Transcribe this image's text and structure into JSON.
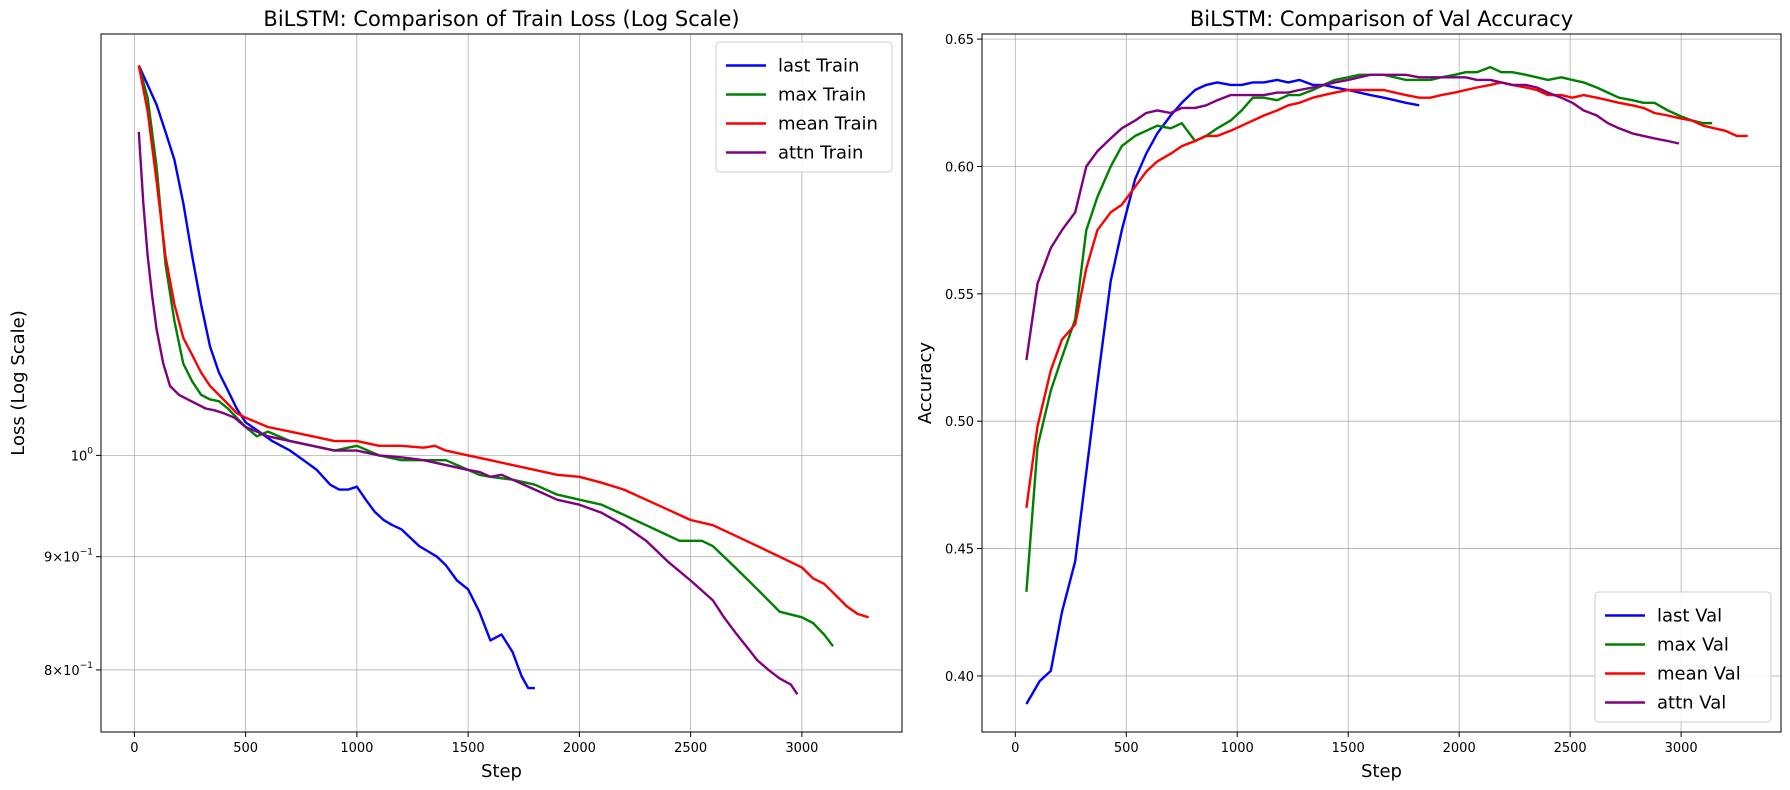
{
  "chart_data": [
    {
      "type": "line",
      "title": "BiLSTM: Comparison of Train Loss (Log Scale)",
      "xlabel": "Step",
      "ylabel": "Loss (Log Scale)",
      "yscale": "log",
      "xlim": [
        -150,
        3450
      ],
      "ylim": [
        0.75,
        1.55
      ],
      "xticks": [
        0,
        500,
        1000,
        1500,
        2000,
        2500,
        3000
      ],
      "xtick_labels": [
        "0",
        "500",
        "1000",
        "1500",
        "2000",
        "2500",
        "3000"
      ],
      "yticks": [
        1.0,
        0.9,
        0.8
      ],
      "ytick_labels": [
        "10^0",
        "9×10^-1",
        "8×10^-1"
      ],
      "ytick_display": [
        {
          "base": "10",
          "exp": "0"
        },
        {
          "coef": "9×10",
          "exp": "−1"
        },
        {
          "coef": "8×10",
          "exp": "−1"
        }
      ],
      "grid": true,
      "legend_position": "top-right",
      "series": [
        {
          "name": "last Train",
          "color": "#0000ff",
          "x": [
            20,
            60,
            100,
            140,
            180,
            220,
            260,
            300,
            340,
            380,
            420,
            460,
            500,
            560,
            620,
            700,
            760,
            820,
            880,
            920,
            960,
            1000,
            1040,
            1080,
            1120,
            1160,
            1200,
            1240,
            1280,
            1320,
            1360,
            1400,
            1450,
            1500,
            1550,
            1600,
            1650,
            1700,
            1740,
            1770,
            1800
          ],
          "y": [
            1.5,
            1.47,
            1.44,
            1.4,
            1.36,
            1.3,
            1.23,
            1.17,
            1.12,
            1.09,
            1.07,
            1.05,
            1.035,
            1.025,
            1.015,
            1.005,
            0.995,
            0.985,
            0.97,
            0.965,
            0.965,
            0.968,
            0.955,
            0.943,
            0.935,
            0.93,
            0.926,
            0.918,
            0.91,
            0.905,
            0.9,
            0.892,
            0.878,
            0.87,
            0.85,
            0.825,
            0.83,
            0.815,
            0.795,
            0.785,
            0.785
          ]
        },
        {
          "name": "max Train",
          "color": "#008000",
          "x": [
            20,
            60,
            100,
            140,
            180,
            220,
            260,
            300,
            340,
            380,
            420,
            460,
            500,
            550,
            600,
            650,
            700,
            800,
            900,
            1000,
            1100,
            1200,
            1300,
            1400,
            1500,
            1550,
            1600,
            1700,
            1800,
            1900,
            2000,
            2100,
            2200,
            2300,
            2400,
            2450,
            2500,
            2550,
            2600,
            2650,
            2700,
            2800,
            2900,
            3000,
            3050,
            3100,
            3140
          ],
          "y": [
            1.5,
            1.45,
            1.35,
            1.22,
            1.15,
            1.1,
            1.08,
            1.065,
            1.06,
            1.058,
            1.05,
            1.04,
            1.03,
            1.02,
            1.025,
            1.02,
            1.015,
            1.01,
            1.005,
            1.01,
            1.0,
            0.995,
            0.995,
            0.995,
            0.985,
            0.98,
            0.978,
            0.975,
            0.97,
            0.96,
            0.955,
            0.95,
            0.94,
            0.93,
            0.92,
            0.915,
            0.915,
            0.915,
            0.91,
            0.9,
            0.89,
            0.87,
            0.85,
            0.845,
            0.84,
            0.83,
            0.82
          ]
        },
        {
          "name": "mean Train",
          "color": "#ff0000",
          "x": [
            20,
            60,
            100,
            140,
            180,
            220,
            260,
            300,
            340,
            380,
            420,
            460,
            500,
            550,
            600,
            700,
            800,
            900,
            1000,
            1100,
            1200,
            1300,
            1350,
            1400,
            1500,
            1600,
            1700,
            1800,
            1900,
            2000,
            2100,
            2200,
            2300,
            2400,
            2500,
            2600,
            2700,
            2800,
            2900,
            3000,
            3050,
            3100,
            3150,
            3200,
            3250,
            3300
          ],
          "y": [
            1.5,
            1.43,
            1.33,
            1.23,
            1.17,
            1.13,
            1.11,
            1.09,
            1.075,
            1.065,
            1.055,
            1.045,
            1.04,
            1.035,
            1.03,
            1.025,
            1.02,
            1.015,
            1.015,
            1.01,
            1.01,
            1.008,
            1.01,
            1.005,
            1.0,
            0.995,
            0.99,
            0.985,
            0.98,
            0.978,
            0.972,
            0.965,
            0.955,
            0.945,
            0.935,
            0.93,
            0.92,
            0.91,
            0.9,
            0.89,
            0.88,
            0.875,
            0.865,
            0.855,
            0.848,
            0.845
          ]
        },
        {
          "name": "attn Train",
          "color": "#800080",
          "x": [
            20,
            40,
            60,
            80,
            100,
            130,
            160,
            200,
            240,
            280,
            320,
            360,
            400,
            450,
            500,
            550,
            600,
            700,
            800,
            900,
            1000,
            1100,
            1200,
            1300,
            1400,
            1500,
            1550,
            1600,
            1650,
            1700,
            1800,
            1900,
            2000,
            2100,
            2200,
            2300,
            2350,
            2400,
            2500,
            2600,
            2650,
            2700,
            2750,
            2800,
            2850,
            2900,
            2950,
            2980
          ],
          "y": [
            1.4,
            1.3,
            1.23,
            1.18,
            1.14,
            1.1,
            1.075,
            1.065,
            1.06,
            1.055,
            1.05,
            1.048,
            1.045,
            1.04,
            1.03,
            1.025,
            1.02,
            1.015,
            1.01,
            1.005,
            1.005,
            1.0,
            0.998,
            0.995,
            0.99,
            0.985,
            0.983,
            0.978,
            0.98,
            0.975,
            0.965,
            0.955,
            0.95,
            0.942,
            0.93,
            0.915,
            0.905,
            0.895,
            0.878,
            0.86,
            0.845,
            0.832,
            0.82,
            0.808,
            0.8,
            0.793,
            0.788,
            0.78
          ]
        }
      ]
    },
    {
      "type": "line",
      "title": "BiLSTM: Comparison of Val Accuracy",
      "xlabel": "Step",
      "ylabel": "Accuracy",
      "xlim": [
        -150,
        3450
      ],
      "ylim": [
        0.378,
        0.652
      ],
      "xticks": [
        0,
        500,
        1000,
        1500,
        2000,
        2500,
        3000
      ],
      "xtick_labels": [
        "0",
        "500",
        "1000",
        "1500",
        "2000",
        "2500",
        "3000"
      ],
      "yticks": [
        0.4,
        0.45,
        0.5,
        0.55,
        0.6,
        0.65
      ],
      "ytick_labels": [
        "0.40",
        "0.45",
        "0.50",
        "0.55",
        "0.60",
        "0.65"
      ],
      "grid": true,
      "legend_position": "bottom-right",
      "series": [
        {
          "name": "last Val",
          "color": "#0000ff",
          "x": [
            50,
            110,
            160,
            210,
            270,
            320,
            370,
            430,
            480,
            540,
            590,
            640,
            700,
            750,
            810,
            860,
            910,
            970,
            1020,
            1070,
            1120,
            1180,
            1230,
            1280,
            1340,
            1390,
            1440,
            1500,
            1550,
            1600,
            1660,
            1710,
            1760,
            1820
          ],
          "y": [
            0.389,
            0.398,
            0.402,
            0.425,
            0.445,
            0.48,
            0.515,
            0.555,
            0.575,
            0.595,
            0.605,
            0.613,
            0.62,
            0.625,
            0.63,
            0.632,
            0.633,
            0.632,
            0.632,
            0.633,
            0.633,
            0.634,
            0.633,
            0.634,
            0.632,
            0.632,
            0.631,
            0.63,
            0.629,
            0.628,
            0.627,
            0.626,
            0.625,
            0.624
          ]
        },
        {
          "name": "max Val",
          "color": "#008000",
          "x": [
            50,
            100,
            160,
            210,
            270,
            320,
            370,
            430,
            480,
            540,
            590,
            640,
            700,
            750,
            810,
            860,
            910,
            970,
            1020,
            1070,
            1120,
            1180,
            1230,
            1280,
            1340,
            1390,
            1440,
            1500,
            1550,
            1600,
            1660,
            1710,
            1760,
            1820,
            1870,
            1920,
            1980,
            2030,
            2080,
            2140,
            2190,
            2240,
            2300,
            2350,
            2400,
            2460,
            2510,
            2560,
            2620,
            2670,
            2720,
            2780,
            2830,
            2880,
            2940,
            2990,
            3050,
            3100,
            3140
          ],
          "y": [
            0.433,
            0.49,
            0.512,
            0.525,
            0.54,
            0.575,
            0.588,
            0.6,
            0.608,
            0.612,
            0.614,
            0.616,
            0.615,
            0.617,
            0.61,
            0.612,
            0.615,
            0.618,
            0.622,
            0.627,
            0.627,
            0.626,
            0.628,
            0.628,
            0.63,
            0.632,
            0.634,
            0.635,
            0.636,
            0.636,
            0.636,
            0.635,
            0.634,
            0.634,
            0.634,
            0.635,
            0.636,
            0.637,
            0.637,
            0.639,
            0.637,
            0.637,
            0.636,
            0.635,
            0.634,
            0.635,
            0.634,
            0.633,
            0.631,
            0.629,
            0.627,
            0.626,
            0.625,
            0.625,
            0.622,
            0.62,
            0.618,
            0.617,
            0.617
          ]
        },
        {
          "name": "mean Val",
          "color": "#ff0000",
          "x": [
            50,
            100,
            160,
            210,
            270,
            320,
            370,
            430,
            480,
            540,
            590,
            640,
            700,
            750,
            810,
            860,
            910,
            970,
            1020,
            1070,
            1120,
            1180,
            1230,
            1280,
            1340,
            1390,
            1440,
            1500,
            1550,
            1600,
            1660,
            1710,
            1760,
            1820,
            1870,
            1920,
            1980,
            2030,
            2080,
            2140,
            2190,
            2240,
            2300,
            2350,
            2400,
            2460,
            2510,
            2560,
            2620,
            2670,
            2720,
            2780,
            2830,
            2880,
            2940,
            2990,
            3050,
            3100,
            3150,
            3200,
            3250,
            3300
          ],
          "y": [
            0.466,
            0.498,
            0.52,
            0.532,
            0.538,
            0.56,
            0.575,
            0.582,
            0.585,
            0.592,
            0.598,
            0.602,
            0.605,
            0.608,
            0.61,
            0.612,
            0.612,
            0.614,
            0.616,
            0.618,
            0.62,
            0.622,
            0.624,
            0.625,
            0.627,
            0.628,
            0.629,
            0.63,
            0.63,
            0.63,
            0.63,
            0.629,
            0.628,
            0.627,
            0.627,
            0.628,
            0.629,
            0.63,
            0.631,
            0.632,
            0.633,
            0.632,
            0.631,
            0.63,
            0.628,
            0.628,
            0.627,
            0.628,
            0.627,
            0.626,
            0.625,
            0.624,
            0.623,
            0.621,
            0.62,
            0.619,
            0.618,
            0.616,
            0.615,
            0.614,
            0.612,
            0.612
          ]
        },
        {
          "name": "attn Val",
          "color": "#800080",
          "x": [
            50,
            100,
            160,
            210,
            270,
            320,
            370,
            430,
            480,
            540,
            590,
            640,
            700,
            750,
            810,
            860,
            910,
            970,
            1020,
            1070,
            1120,
            1180,
            1230,
            1280,
            1340,
            1390,
            1440,
            1500,
            1550,
            1600,
            1660,
            1710,
            1760,
            1820,
            1870,
            1920,
            1980,
            2030,
            2080,
            2140,
            2190,
            2240,
            2300,
            2350,
            2400,
            2460,
            2510,
            2560,
            2620,
            2670,
            2720,
            2780,
            2830,
            2880,
            2940,
            2990
          ],
          "y": [
            0.524,
            0.554,
            0.568,
            0.575,
            0.582,
            0.6,
            0.606,
            0.611,
            0.615,
            0.618,
            0.621,
            0.622,
            0.621,
            0.623,
            0.623,
            0.624,
            0.626,
            0.628,
            0.628,
            0.628,
            0.628,
            0.629,
            0.629,
            0.63,
            0.631,
            0.632,
            0.633,
            0.634,
            0.635,
            0.636,
            0.636,
            0.636,
            0.636,
            0.635,
            0.635,
            0.635,
            0.635,
            0.635,
            0.634,
            0.634,
            0.633,
            0.632,
            0.632,
            0.631,
            0.629,
            0.627,
            0.625,
            0.622,
            0.62,
            0.617,
            0.615,
            0.613,
            0.612,
            0.611,
            0.61,
            0.609
          ]
        }
      ]
    }
  ]
}
